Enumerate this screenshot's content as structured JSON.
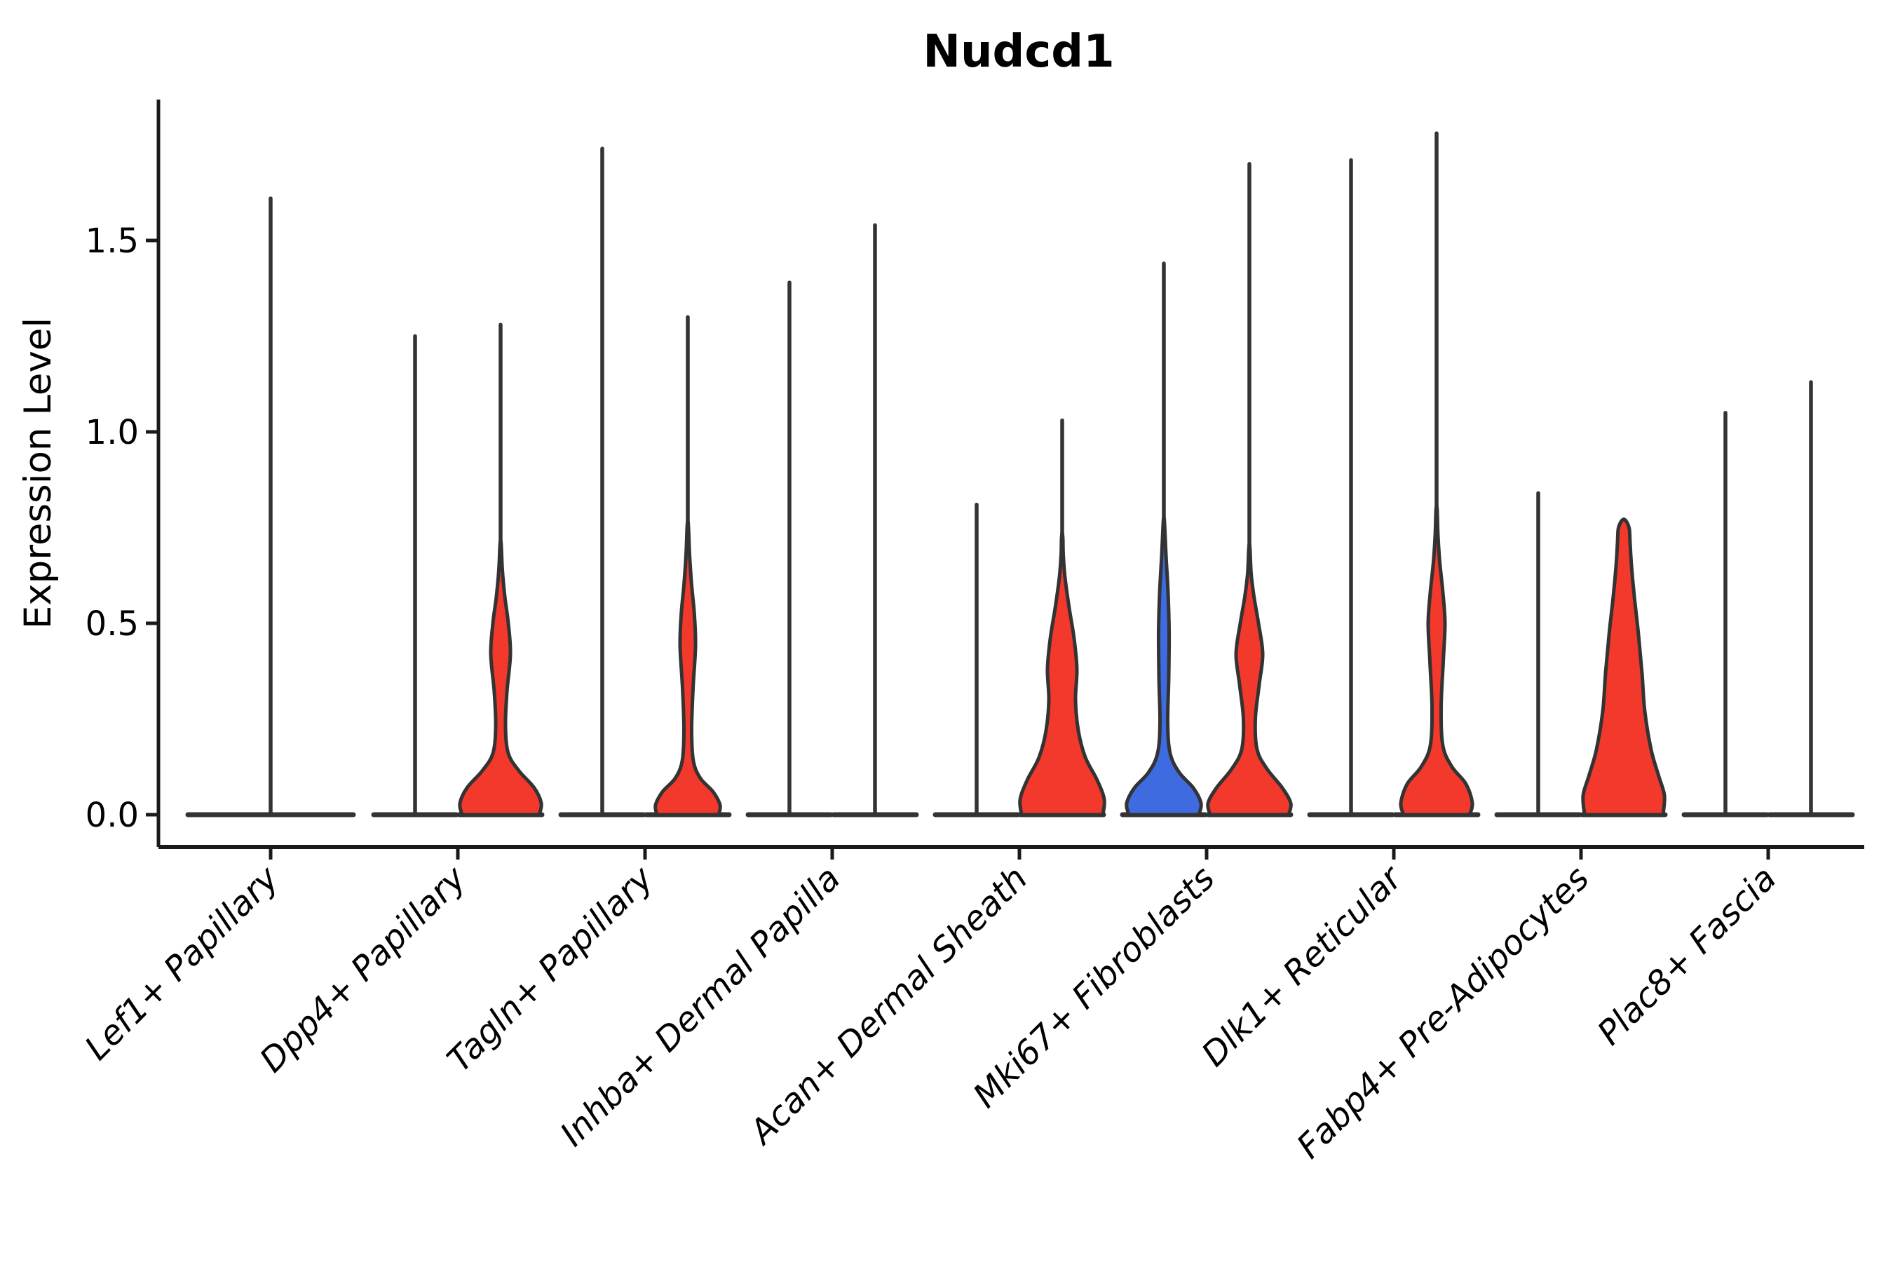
{
  "chart_data": {
    "type": "violin",
    "title": "Nudcd1",
    "ylabel": "Expression Level",
    "xlabel": "",
    "yticks": [
      0.0,
      0.5,
      1.0,
      1.5
    ],
    "ytick_labels": [
      "0.0",
      "0.5",
      "1.0",
      "1.5"
    ],
    "ylim": [
      -0.09,
      1.87
    ],
    "grid": false,
    "legend": "none",
    "palette": {
      "red": "#F2392C",
      "blue": "#3E6BE0",
      "outline": "#333333",
      "axis": "#1a1a1a"
    },
    "categories": [
      "Lef1+ Papillary",
      "Dpp4+ Papillary",
      "Tagln+ Papillary",
      "Inhba+ Dermal Papilla",
      "Acan+ Dermal Sheath",
      "Mki67+ Fibroblasts",
      "Dlk1+ Reticular",
      "Fabp4+ Pre-Adipocytes",
      "Plac8+ Fascia"
    ],
    "groups": [
      {
        "label": "Lef1+ Papillary",
        "violins": [
          {
            "position": "center",
            "fill": null,
            "max_expression": 1.61,
            "shape": "flat",
            "profile": null
          }
        ]
      },
      {
        "label": "Dpp4+ Papillary",
        "violins": [
          {
            "position": "left",
            "fill": null,
            "max_expression": 1.25,
            "shape": "flat",
            "profile": null
          },
          {
            "position": "right",
            "fill": "#F2392C",
            "max_expression": 1.28,
            "shape": "bulge",
            "profile": [
              [
                0,
                55
              ],
              [
                0.03,
                58
              ],
              [
                0.07,
                48
              ],
              [
                0.115,
                26
              ],
              [
                0.16,
                11
              ],
              [
                0.23,
                7
              ],
              [
                0.32,
                9
              ],
              [
                0.42,
                14
              ],
              [
                0.5,
                11
              ],
              [
                0.57,
                6
              ],
              [
                0.64,
                2.5
              ],
              [
                0.7,
                1
              ]
            ]
          }
        ]
      },
      {
        "label": "Tagln+ Papillary",
        "violins": [
          {
            "position": "left",
            "fill": null,
            "max_expression": 1.74,
            "shape": "flat",
            "profile": null
          },
          {
            "position": "right",
            "fill": "#F2392C",
            "max_expression": 1.3,
            "shape": "bulge",
            "profile": [
              [
                0,
                44
              ],
              [
                0.025,
                46
              ],
              [
                0.06,
                36
              ],
              [
                0.095,
                18
              ],
              [
                0.14,
                8
              ],
              [
                0.22,
                5.5
              ],
              [
                0.33,
                7.5
              ],
              [
                0.44,
                11
              ],
              [
                0.52,
                9.5
              ],
              [
                0.6,
                5.5
              ],
              [
                0.68,
                2.5
              ],
              [
                0.75,
                1
              ]
            ]
          }
        ]
      },
      {
        "label": "Inhba+ Dermal Papilla",
        "violins": [
          {
            "position": "left",
            "fill": null,
            "max_expression": 1.39,
            "shape": "flat",
            "profile": null
          },
          {
            "position": "right",
            "fill": null,
            "max_expression": 1.54,
            "shape": "flat",
            "profile": null
          }
        ]
      },
      {
        "label": "Acan+ Dermal Sheath",
        "violins": [
          {
            "position": "left",
            "fill": null,
            "max_expression": 0.81,
            "shape": "flat",
            "profile": null
          },
          {
            "position": "right",
            "fill": "#F2392C",
            "max_expression": 1.03,
            "shape": "bulge",
            "profile": [
              [
                0,
                58
              ],
              [
                0.04,
                60
              ],
              [
                0.09,
                50
              ],
              [
                0.15,
                33
              ],
              [
                0.22,
                23
              ],
              [
                0.3,
                19
              ],
              [
                0.38,
                21
              ],
              [
                0.46,
                17
              ],
              [
                0.54,
                10
              ],
              [
                0.62,
                4
              ],
              [
                0.68,
                1.5
              ],
              [
                0.72,
                1
              ]
            ]
          }
        ]
      },
      {
        "label": "Mki67+ Fibroblasts",
        "violins": [
          {
            "position": "left",
            "fill": "#3E6BE0",
            "max_expression": 1.44,
            "shape": "bulge",
            "profile": [
              [
                0,
                50
              ],
              [
                0.03,
                53
              ],
              [
                0.07,
                42
              ],
              [
                0.11,
                22
              ],
              [
                0.16,
                9
              ],
              [
                0.24,
                5.5
              ],
              [
                0.36,
                7
              ],
              [
                0.48,
                7.5
              ],
              [
                0.58,
                6
              ],
              [
                0.68,
                3
              ],
              [
                0.76,
                1
              ]
            ]
          },
          {
            "position": "right",
            "fill": "#F2392C",
            "max_expression": 1.7,
            "shape": "bulge",
            "profile": [
              [
                0,
                56
              ],
              [
                0.03,
                59
              ],
              [
                0.07,
                47
              ],
              [
                0.12,
                25
              ],
              [
                0.17,
                11
              ],
              [
                0.25,
                8.5
              ],
              [
                0.34,
                14
              ],
              [
                0.42,
                19
              ],
              [
                0.5,
                13
              ],
              [
                0.57,
                6.5
              ],
              [
                0.63,
                2.5
              ],
              [
                0.69,
                1
              ]
            ]
          }
        ]
      },
      {
        "label": "Dlk1+ Reticular",
        "violins": [
          {
            "position": "left",
            "fill": null,
            "max_expression": 1.71,
            "shape": "flat",
            "profile": null
          },
          {
            "position": "right",
            "fill": "#F2392C",
            "max_expression": 1.78,
            "shape": "bulge",
            "profile": [
              [
                0,
                47
              ],
              [
                0.03,
                51
              ],
              [
                0.08,
                42
              ],
              [
                0.125,
                22
              ],
              [
                0.18,
                9
              ],
              [
                0.28,
                6.5
              ],
              [
                0.4,
                9.5
              ],
              [
                0.5,
                12
              ],
              [
                0.58,
                9
              ],
              [
                0.66,
                4.5
              ],
              [
                0.73,
                2
              ],
              [
                0.79,
                1
              ]
            ]
          }
        ]
      },
      {
        "label": "Fabp4+ Pre-Adipocytes",
        "violins": [
          {
            "position": "left",
            "fill": null,
            "max_expression": 0.84,
            "shape": "flat",
            "profile": null
          },
          {
            "position": "right",
            "fill": "#F2392C",
            "max_expression": 0.77,
            "shape": "column",
            "profile": [
              [
                0,
                56
              ],
              [
                0.05,
                58
              ],
              [
                0.1,
                50
              ],
              [
                0.17,
                39
              ],
              [
                0.27,
                30
              ],
              [
                0.37,
                26
              ],
              [
                0.47,
                21
              ],
              [
                0.57,
                15
              ],
              [
                0.65,
                11
              ],
              [
                0.71,
                9
              ],
              [
                0.745,
                8
              ],
              [
                0.762,
                5
              ]
            ]
          }
        ]
      },
      {
        "label": "Plac8+ Fascia",
        "violins": [
          {
            "position": "left",
            "fill": null,
            "max_expression": 1.05,
            "shape": "flat",
            "profile": null
          },
          {
            "position": "right",
            "fill": null,
            "max_expression": 1.13,
            "shape": "flat",
            "profile": null
          }
        ]
      }
    ]
  }
}
